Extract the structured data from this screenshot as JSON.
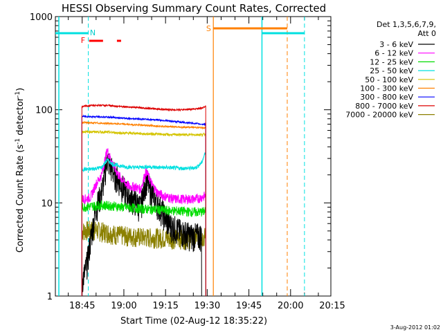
{
  "chart_data": {
    "type": "line",
    "title": "HESSI Observing Summary Count Rates, Corrected",
    "xlabel": "Start Time (02-Aug-12 18:35:22)",
    "ylabel": "Corrected Count Rate (s",
    "ylabel_sup1": "-1",
    "ylabel_mid": " detector",
    "ylabel_sup2": "-1",
    "ylabel_end": ")",
    "y_scale": "log",
    "x_range_min": [
      18.589,
      20.242
    ],
    "y_range": [
      1,
      1000
    ],
    "x_ticks": [
      {
        "label": "18:45",
        "min": 1125
      },
      {
        "label": "19:00",
        "min": 1140
      },
      {
        "label": "19:15",
        "min": 1155
      },
      {
        "label": "19:30",
        "min": 1170
      },
      {
        "label": "19:45",
        "min": 1185
      },
      {
        "label": "20:00",
        "min": 1200
      },
      {
        "label": "20:15",
        "min": 1215
      }
    ],
    "y_ticks": [
      {
        "label": "1",
        "value": 1
      },
      {
        "label": "10",
        "value": 10
      },
      {
        "label": "100",
        "value": 100
      },
      {
        "label": "1000",
        "value": 1000
      }
    ],
    "legend": {
      "header1": "Det 1,3,5,6,7,9,",
      "header2": "Att 0",
      "placement": "right"
    },
    "series": [
      {
        "name": "3 - 6 keV",
        "color": "#000000",
        "values": [
          [
            1124.9,
            1.5
          ],
          [
            1126,
            1.8
          ],
          [
            1127,
            2.5
          ],
          [
            1128,
            4
          ],
          [
            1130,
            9
          ],
          [
            1132,
            13
          ],
          [
            1134,
            30
          ],
          [
            1136,
            22
          ],
          [
            1138,
            18
          ],
          [
            1140,
            14
          ],
          [
            1142,
            12
          ],
          [
            1144,
            10.5
          ],
          [
            1146,
            9
          ],
          [
            1148,
            18
          ],
          [
            1150,
            13
          ],
          [
            1152,
            10
          ],
          [
            1154,
            8
          ],
          [
            1156,
            6
          ],
          [
            1158,
            5.5
          ],
          [
            1160,
            5
          ],
          [
            1162,
            4.8
          ],
          [
            1164,
            4.5
          ],
          [
            1166,
            4.5
          ],
          [
            1168,
            4.5
          ]
        ]
      },
      {
        "name": "6 - 12 keV",
        "color": "#ff00ff",
        "values": [
          [
            1124.9,
            11
          ],
          [
            1126,
            11
          ],
          [
            1128,
            11.5
          ],
          [
            1130,
            16
          ],
          [
            1132,
            20
          ],
          [
            1134,
            37
          ],
          [
            1136,
            26
          ],
          [
            1138,
            20
          ],
          [
            1140,
            17
          ],
          [
            1142,
            15
          ],
          [
            1144,
            15
          ],
          [
            1146,
            14
          ],
          [
            1148,
            22
          ],
          [
            1150,
            16
          ],
          [
            1152,
            13
          ],
          [
            1154,
            12
          ],
          [
            1156,
            11.5
          ],
          [
            1158,
            11
          ],
          [
            1160,
            11
          ],
          [
            1162,
            11
          ],
          [
            1164,
            11
          ],
          [
            1166,
            11
          ],
          [
            1168,
            11.5
          ],
          [
            1169.5,
            12
          ]
        ]
      },
      {
        "name": "12 - 25 keV",
        "color": "#00dd00",
        "values": [
          [
            1124.9,
            9
          ],
          [
            1128,
            9.2
          ],
          [
            1132,
            9.5
          ],
          [
            1136,
            9.3
          ],
          [
            1140,
            9
          ],
          [
            1144,
            8.8
          ],
          [
            1148,
            8.6
          ],
          [
            1152,
            8.5
          ],
          [
            1156,
            8.3
          ],
          [
            1160,
            8.2
          ],
          [
            1164,
            8
          ],
          [
            1168,
            8
          ],
          [
            1169.5,
            8.2
          ]
        ]
      },
      {
        "name": "25 - 50 keV",
        "color": "#00e0e0",
        "values": [
          [
            1124.9,
            23
          ],
          [
            1128,
            23
          ],
          [
            1132,
            24
          ],
          [
            1134,
            29
          ],
          [
            1136,
            26
          ],
          [
            1140,
            24.5
          ],
          [
            1144,
            24
          ],
          [
            1148,
            24.5
          ],
          [
            1152,
            24
          ],
          [
            1156,
            24
          ],
          [
            1160,
            23.5
          ],
          [
            1164,
            23.5
          ],
          [
            1166,
            24
          ],
          [
            1168,
            27
          ],
          [
            1169.5,
            36
          ]
        ]
      },
      {
        "name": "50 - 100 keV",
        "color": "#d4c400",
        "values": [
          [
            1124.9,
            58
          ],
          [
            1130,
            58
          ],
          [
            1136,
            57
          ],
          [
            1140,
            56
          ],
          [
            1144,
            56
          ],
          [
            1148,
            55
          ],
          [
            1152,
            55
          ],
          [
            1156,
            54
          ],
          [
            1160,
            54
          ],
          [
            1164,
            54
          ],
          [
            1168,
            54
          ],
          [
            1169.5,
            55
          ]
        ]
      },
      {
        "name": "100 - 300 keV",
        "color": "#ff8000",
        "values": [
          [
            1124.9,
            73
          ],
          [
            1130,
            72
          ],
          [
            1136,
            71
          ],
          [
            1140,
            70
          ],
          [
            1144,
            69
          ],
          [
            1148,
            68
          ],
          [
            1152,
            67
          ],
          [
            1156,
            66
          ],
          [
            1160,
            65
          ],
          [
            1164,
            65
          ],
          [
            1168,
            64
          ],
          [
            1169.5,
            64
          ]
        ]
      },
      {
        "name": "300 - 800 keV",
        "color": "#0000ff",
        "values": [
          [
            1124.9,
            85
          ],
          [
            1130,
            84
          ],
          [
            1136,
            83
          ],
          [
            1140,
            81
          ],
          [
            1144,
            80
          ],
          [
            1148,
            79
          ],
          [
            1152,
            78
          ],
          [
            1156,
            76
          ],
          [
            1160,
            74
          ],
          [
            1164,
            72
          ],
          [
            1168,
            70
          ],
          [
            1169.5,
            70
          ]
        ]
      },
      {
        "name": "800 - 7000 keV",
        "color": "#dd0000",
        "values": [
          [
            1124.9,
            108
          ],
          [
            1128,
            111
          ],
          [
            1132,
            112
          ],
          [
            1136,
            110
          ],
          [
            1140,
            108
          ],
          [
            1144,
            106
          ],
          [
            1148,
            104
          ],
          [
            1152,
            102
          ],
          [
            1156,
            100
          ],
          [
            1160,
            100
          ],
          [
            1164,
            101
          ],
          [
            1168,
            104
          ],
          [
            1169.5,
            110
          ]
        ]
      },
      {
        "name": "7000 - 20000 keV",
        "color": "#8b8000",
        "values": [
          [
            1124.9,
            5
          ],
          [
            1128,
            5.2
          ],
          [
            1132,
            5
          ],
          [
            1136,
            4.7
          ],
          [
            1140,
            4.5
          ],
          [
            1144,
            4.4
          ],
          [
            1148,
            4.3
          ],
          [
            1152,
            4.3
          ],
          [
            1156,
            4.2
          ],
          [
            1160,
            4.2
          ],
          [
            1164,
            4.2
          ],
          [
            1168,
            4.3
          ],
          [
            1169.5,
            4.4
          ]
        ]
      }
    ],
    "annotations": [
      {
        "label": "F",
        "color": "#ff0000"
      },
      {
        "label": "N",
        "color": "#00cccc"
      },
      {
        "label": "S",
        "color": "#ff8000"
      }
    ],
    "footer": "3-Aug-2012 01:02"
  }
}
